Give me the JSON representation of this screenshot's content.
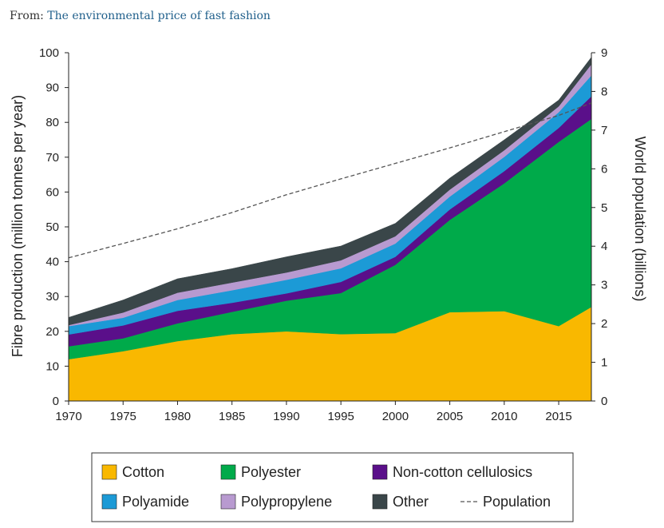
{
  "source": {
    "prefix": "From: ",
    "link_text": "The environmental price of fast fashion"
  },
  "chart_data": {
    "type": "area",
    "stacked": true,
    "x": [
      1970,
      1975,
      1980,
      1985,
      1990,
      1995,
      2000,
      2005,
      2010,
      2015,
      2018
    ],
    "xticks": [
      1970,
      1975,
      1980,
      1985,
      1990,
      1995,
      2000,
      2005,
      2010,
      2015
    ],
    "xlim": [
      1970,
      2018
    ],
    "ylabel": "Fibre production (million tonnes per year)",
    "ylim": [
      0,
      100
    ],
    "yticks": [
      0,
      10,
      20,
      30,
      40,
      50,
      60,
      70,
      80,
      90,
      100
    ],
    "y2label": "World population (billions)",
    "y2lim": [
      0,
      9
    ],
    "y2ticks": [
      0,
      1,
      2,
      3,
      4,
      5,
      6,
      7,
      8,
      9
    ],
    "legend_position": "bottom",
    "series": [
      {
        "name": "Cotton",
        "color": "#f9b800",
        "values": [
          12,
          14.3,
          17.2,
          19.2,
          20,
          19.2,
          19.5,
          25.5,
          25.8,
          21.5,
          27
        ]
      },
      {
        "name": "Polyester",
        "color": "#00aa4a",
        "values": [
          3.7,
          3.7,
          5.1,
          6.4,
          8.8,
          11.8,
          19.6,
          26.5,
          36.7,
          52.9,
          54
        ]
      },
      {
        "name": "Non-cotton cellulosics",
        "color": "#5a0f8a",
        "values": [
          3.4,
          3.7,
          3.6,
          2.6,
          2.1,
          3.2,
          2.3,
          3,
          3.5,
          4,
          6.5
        ]
      },
      {
        "name": "Polyamide",
        "color": "#1c9ad6",
        "values": [
          2.4,
          2.2,
          3.1,
          3.6,
          3.9,
          3.9,
          3.8,
          3.7,
          4.1,
          4.5,
          6
        ]
      },
      {
        "name": "Polypropylene",
        "color": "#b89ad0",
        "values": [
          0.3,
          1.5,
          2.1,
          2.2,
          2.1,
          2.3,
          2.1,
          2,
          1.9,
          1.7,
          3.2
        ]
      },
      {
        "name": "Other",
        "color": "#3a4649",
        "values": [
          2.2,
          3.6,
          4.0,
          4.0,
          4.5,
          4.1,
          3.7,
          3.3,
          3.0,
          1.8,
          2
        ]
      }
    ],
    "population": {
      "name": "Population",
      "color": "#555555",
      "values": [
        3.7,
        4.07,
        4.45,
        4.87,
        5.33,
        5.74,
        6.14,
        6.54,
        6.96,
        7.38,
        7.7
      ]
    }
  }
}
